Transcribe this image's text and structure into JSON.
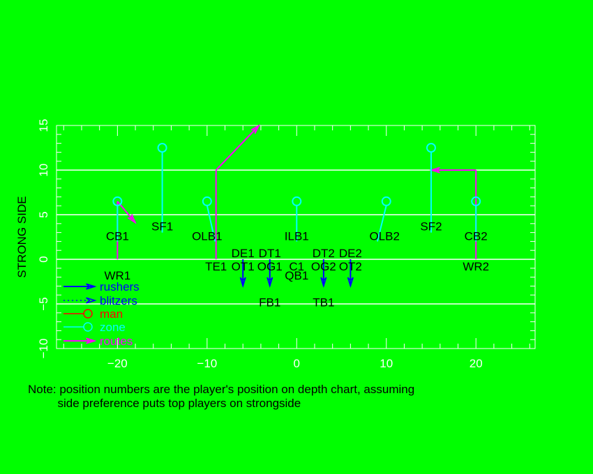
{
  "chart_data": {
    "type": "diagram-scatter",
    "ylabel": "STRONG SIDE",
    "xlim": [
      -26.8,
      26.6
    ],
    "ylim": [
      -10,
      15
    ],
    "xticks": [
      -20,
      -10,
      0,
      10,
      20
    ],
    "yticks": [
      -10,
      -5,
      0,
      5,
      10,
      15
    ],
    "gridlines_y": [
      -5,
      0,
      5,
      10
    ],
    "colors": {
      "background": "#00ff00",
      "rushers": "#0000ff",
      "blitzers": "#0000ff",
      "man": "#ff0000",
      "zone": "#00ffff",
      "routes": "#ff00ff",
      "grid": "#ffffff",
      "text": "#000000"
    },
    "legend": {
      "placement": "bottom-left",
      "entries": [
        {
          "label": "rushers",
          "color": "#0000ff",
          "style": "arrow"
        },
        {
          "label": "blitzers",
          "color": "#0000ff",
          "style": "dotted-arrow"
        },
        {
          "label": "man",
          "color": "#ff0000",
          "style": "circle"
        },
        {
          "label": "zone",
          "color": "#00ffff",
          "style": "circle"
        },
        {
          "label": "routes",
          "color": "#ff00ff",
          "style": "arrow"
        }
      ]
    },
    "zone_defenders": [
      {
        "label": "CB1",
        "circle": [
          -20,
          6.5
        ],
        "anchor": [
          -20,
          2
        ],
        "label_pos": [
          -20,
          2.6
        ]
      },
      {
        "label": "SF1",
        "circle": [
          -15,
          12.5
        ],
        "anchor": [
          -15,
          3
        ],
        "label_pos": [
          -15,
          3.7
        ]
      },
      {
        "label": "OLB1",
        "circle": [
          -10,
          6.5
        ],
        "anchor": [
          -9.1,
          2
        ],
        "label_pos": [
          -10,
          2.6
        ]
      },
      {
        "label": "ILB1",
        "circle": [
          0,
          6.5
        ],
        "anchor": [
          0,
          2
        ],
        "label_pos": [
          0,
          2.6
        ]
      },
      {
        "label": "OLB2",
        "circle": [
          10,
          6.5
        ],
        "anchor": [
          9,
          2
        ],
        "label_pos": [
          9.8,
          2.6
        ]
      },
      {
        "label": "SF2",
        "circle": [
          15,
          12.5
        ],
        "anchor": [
          15,
          3
        ],
        "label_pos": [
          15,
          3.7
        ]
      },
      {
        "label": "CB2",
        "circle": [
          20,
          6.5
        ],
        "anchor": [
          20,
          2
        ],
        "label_pos": [
          20,
          2.6
        ]
      }
    ],
    "rushers": [
      {
        "label": "DE1",
        "from": [
          -6,
          0
        ],
        "to": [
          -6,
          -3
        ],
        "label_pos": [
          -6,
          0.7
        ]
      },
      {
        "label": "DT1",
        "from": [
          -3,
          0
        ],
        "to": [
          -3,
          -3
        ],
        "label_pos": [
          -3,
          0.7
        ]
      },
      {
        "label": "DT2",
        "from": [
          3,
          0
        ],
        "to": [
          3,
          -3
        ],
        "label_pos": [
          3,
          0.7
        ]
      },
      {
        "label": "DE2",
        "from": [
          6,
          0
        ],
        "to": [
          6,
          -3
        ],
        "label_pos": [
          6,
          0.7
        ]
      }
    ],
    "routes": [
      {
        "points": [
          [
            -20,
            0
          ],
          [
            -20,
            6.5
          ],
          [
            -18,
            4.1
          ]
        ]
      },
      {
        "points": [
          [
            -9,
            0
          ],
          [
            -9,
            10
          ],
          [
            -4.2,
            15
          ]
        ]
      },
      {
        "points": [
          [
            20,
            0
          ],
          [
            20,
            10
          ],
          [
            15,
            10
          ]
        ]
      }
    ],
    "offense": [
      {
        "label": "WR1",
        "pos": [
          -20,
          -1.8
        ]
      },
      {
        "label": "TE1",
        "pos": [
          -9,
          -0.8
        ]
      },
      {
        "label": "OT1",
        "pos": [
          -6,
          -0.8
        ]
      },
      {
        "label": "OG1",
        "pos": [
          -3,
          -0.8
        ]
      },
      {
        "label": "C1",
        "pos": [
          0,
          -0.8
        ]
      },
      {
        "label": "OG2",
        "pos": [
          3,
          -0.8
        ]
      },
      {
        "label": "OT2",
        "pos": [
          6,
          -0.8
        ]
      },
      {
        "label": "WR2",
        "pos": [
          20,
          -0.8
        ]
      },
      {
        "label": "QB1",
        "pos": [
          0,
          -1.8
        ]
      },
      {
        "label": "FB1",
        "pos": [
          -3,
          -4.8
        ]
      },
      {
        "label": "TB1",
        "pos": [
          3,
          -4.8
        ]
      }
    ]
  },
  "note": {
    "line1": "Note: position numbers are the player's position on depth chart, assuming",
    "line2": "         side preference puts top players on strongside"
  }
}
